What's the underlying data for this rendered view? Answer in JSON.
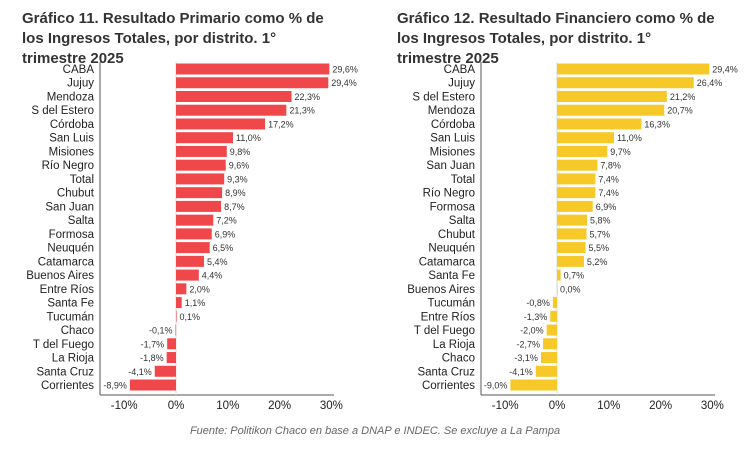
{
  "chart_data": [
    {
      "type": "bar",
      "orientation": "horizontal",
      "title": "Gráfico 11. Resultado Primario como % de los Ingresos Totales, por distrito. 1° trimestre 2025",
      "color": "#f0474b",
      "categories": [
        "CABA",
        "Jujuy",
        "Mendoza",
        "S del Estero",
        "Córdoba",
        "San Luis",
        "Misiones",
        "Río Negro",
        "Total",
        "Chubut",
        "San Juan",
        "Salta",
        "Formosa",
        "Neuquén",
        "Catamarca",
        "Buenos Aires",
        "Entre Ríos",
        "Santa Fe",
        "Tucumán",
        "Chaco",
        "T del Fuego",
        "La Rioja",
        "Santa Cruz",
        "Corrientes"
      ],
      "values": [
        29.6,
        29.4,
        22.3,
        21.3,
        17.2,
        11.0,
        9.8,
        9.6,
        9.3,
        8.9,
        8.7,
        7.2,
        6.9,
        6.5,
        5.4,
        4.4,
        2.0,
        1.1,
        0.1,
        -0.1,
        -1.7,
        -1.8,
        -4.1,
        -8.9
      ],
      "labels": [
        "29,6%",
        "29,4%",
        "22,3%",
        "21,3%",
        "17,2%",
        "11,0%",
        "9,8%",
        "9,6%",
        "9,3%",
        "8,9%",
        "8,7%",
        "7,2%",
        "6,9%",
        "6,5%",
        "5,4%",
        "4,4%",
        "2,0%",
        "1,1%",
        "0,1%",
        "-0,1%",
        "-1,7%",
        "-1,8%",
        "-4,1%",
        "-8,9%"
      ],
      "xticks": [
        "-10%",
        "0%",
        "10%",
        "20%",
        "30%"
      ],
      "xtick_values": [
        -10,
        0,
        10,
        20,
        30
      ],
      "xlim": [
        -14.5,
        30.5
      ],
      "grid": false
    },
    {
      "type": "bar",
      "orientation": "horizontal",
      "title": "Gráfico 12. Resultado Financiero como % de los Ingresos Totales, por distrito. 1° trimestre 2025",
      "color": "#f7c928",
      "categories": [
        "CABA",
        "Jujuy",
        "S del Estero",
        "Mendoza",
        "Córdoba",
        "San Luis",
        "Misiones",
        "San Juan",
        "Total",
        "Río Negro",
        "Formosa",
        "Salta",
        "Chubut",
        "Neuquén",
        "Catamarca",
        "Santa Fe",
        "Buenos Aires",
        "Tucumán",
        "Entre Ríos",
        "T del Fuego",
        "La Rioja",
        "Chaco",
        "Santa Cruz",
        "Corrientes"
      ],
      "values": [
        29.4,
        26.4,
        21.2,
        20.7,
        16.3,
        11.0,
        9.7,
        7.8,
        7.4,
        7.4,
        6.9,
        5.8,
        5.7,
        5.5,
        5.2,
        0.7,
        0.0,
        -0.8,
        -1.3,
        -2.0,
        -2.7,
        -3.1,
        -4.1,
        -9.0
      ],
      "labels": [
        "29,4%",
        "26,4%",
        "21,2%",
        "20,7%",
        "16,3%",
        "11,0%",
        "9,7%",
        "7,8%",
        "7,4%",
        "7,4%",
        "6,9%",
        "5,8%",
        "5,7%",
        "5,5%",
        "5,2%",
        "0,7%",
        "0,0%",
        "-0,8%",
        "-1,3%",
        "-2,0%",
        "-2,7%",
        "-3,1%",
        "-4,1%",
        "-9,0%"
      ],
      "xticks": [
        "-10%",
        "0%",
        "10%",
        "20%",
        "30%"
      ],
      "xtick_values": [
        -10,
        0,
        10,
        20,
        30
      ],
      "xlim": [
        -14.5,
        30.5
      ],
      "grid": false
    }
  ],
  "source": "Fuente: Politikon Chaco en base a DNAP e INDEC. Se excluye a La Pampa"
}
